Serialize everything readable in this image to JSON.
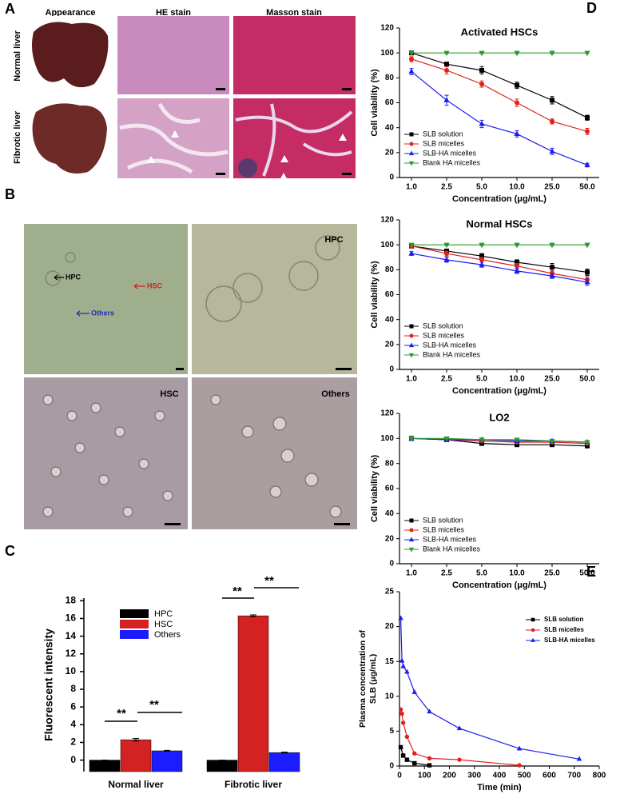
{
  "panel_a": {
    "label": "A",
    "columns": [
      "Appearance",
      "HE stain",
      "Masson stain"
    ],
    "rows": [
      "Normal liver",
      "Fibrotic liver"
    ]
  },
  "panel_b": {
    "label": "B",
    "arrows": [
      "HPC",
      "HSC",
      "Others"
    ],
    "captions": [
      "HPC",
      "HSC",
      "Others"
    ]
  },
  "chart_data": [
    {
      "type": "bar",
      "panel_label": "C",
      "ylabel": "Fluorescent intensity",
      "categories": [
        "Normal liver",
        "Fibrotic liver"
      ],
      "series": [
        {
          "name": "HPC",
          "color": "#000000",
          "values": [
            0,
            0
          ],
          "errors": [
            0,
            0
          ]
        },
        {
          "name": "HSC",
          "color": "#d42222",
          "values": [
            2.3,
            16.3
          ],
          "errors": [
            0.15,
            0.1
          ]
        },
        {
          "name": "Others",
          "color": "#1c1cff",
          "values": [
            1.05,
            0.85
          ],
          "errors": [
            0.05,
            0.05
          ]
        }
      ],
      "ylim": [
        -1.3,
        18.3
      ],
      "yticks": [
        0,
        2,
        4,
        6,
        8,
        10,
        12,
        14,
        16,
        18
      ],
      "annotations": [
        "**",
        "**",
        "**",
        "**"
      ]
    },
    {
      "type": "line",
      "panel_label": "D",
      "title": "Activated HSCs",
      "xlabel": "Concentration (μg/mL)",
      "ylabel": "Cell viability (%)",
      "categories": [
        "1.0",
        "2.5",
        "5.0",
        "10.0",
        "25.0",
        "50.0"
      ],
      "ylim": [
        0,
        120
      ],
      "yticks": [
        0,
        20,
        40,
        60,
        80,
        100,
        120
      ],
      "series": [
        {
          "name": "SLB solution",
          "color": "#000000",
          "marker": "square",
          "values": [
            100,
            91,
            86,
            74,
            62,
            48
          ],
          "errors": [
            1,
            1.5,
            3,
            2.5,
            3,
            2
          ]
        },
        {
          "name": "SLB micelles",
          "color": "#e0201c",
          "marker": "circle",
          "values": [
            95,
            86,
            75,
            60,
            45,
            37
          ],
          "errors": [
            2,
            3,
            2.5,
            3,
            2,
            2.5
          ]
        },
        {
          "name": "SLB-HA micelles",
          "color": "#1c1cf0",
          "marker": "triangle",
          "values": [
            85,
            62,
            43,
            35,
            21,
            10
          ],
          "errors": [
            2.5,
            4,
            3,
            2.5,
            2.5,
            1.5
          ]
        },
        {
          "name": "Blank HA micelles",
          "color": "#2a9a2a",
          "marker": "triangle-down",
          "values": [
            100,
            100,
            100,
            100,
            100,
            100
          ],
          "errors": [
            0.5,
            0.5,
            0.5,
            0.5,
            0.5,
            0.5
          ]
        }
      ]
    },
    {
      "type": "line",
      "title": "Normal HSCs",
      "xlabel": "Concentration (μg/mL)",
      "ylabel": "Cell viability (%)",
      "categories": [
        "1.0",
        "2.5",
        "5.0",
        "10.0",
        "25.0",
        "50.0"
      ],
      "ylim": [
        0,
        120
      ],
      "yticks": [
        0,
        20,
        40,
        60,
        80,
        100,
        120
      ],
      "series": [
        {
          "name": "SLB solution",
          "color": "#000000",
          "marker": "square",
          "values": [
            99,
            95,
            91,
            86,
            82,
            78
          ],
          "errors": [
            1,
            1.5,
            2,
            2,
            3,
            2.5
          ]
        },
        {
          "name": "SLB micelles",
          "color": "#e0201c",
          "marker": "circle",
          "values": [
            99,
            93,
            88,
            83,
            77,
            72
          ],
          "errors": [
            1,
            2,
            2,
            2,
            2,
            2.5
          ]
        },
        {
          "name": "SLB-HA micelles",
          "color": "#1c1cf0",
          "marker": "triangle",
          "values": [
            93,
            88,
            84,
            79,
            75,
            70
          ],
          "errors": [
            1.5,
            2,
            2,
            2,
            2,
            2.5
          ]
        },
        {
          "name": "Blank HA micelles",
          "color": "#2a9a2a",
          "marker": "triangle-down",
          "values": [
            100,
            100,
            100,
            100,
            100,
            100
          ],
          "errors": [
            0.5,
            0.5,
            0.5,
            0.5,
            0.5,
            0.5
          ]
        }
      ]
    },
    {
      "type": "line",
      "title": "LO2",
      "xlabel": "Concentration (μg/mL)",
      "ylabel": "Cell viability (%)",
      "categories": [
        "1.0",
        "2.5",
        "5.0",
        "10.0",
        "25.0",
        "50.0"
      ],
      "ylim": [
        0,
        120
      ],
      "yticks": [
        0,
        20,
        40,
        60,
        80,
        100,
        120
      ],
      "series": [
        {
          "name": "SLB solution",
          "color": "#000000",
          "marker": "square",
          "values": [
            100,
            99,
            96,
            95,
            95,
            94
          ],
          "errors": [
            0.5,
            0.5,
            1,
            1,
            1,
            1
          ]
        },
        {
          "name": "SLB micelles",
          "color": "#e0201c",
          "marker": "circle",
          "values": [
            100,
            99,
            98,
            97,
            97,
            96
          ],
          "errors": [
            0.5,
            0.5,
            0.5,
            1,
            1,
            1
          ]
        },
        {
          "name": "SLB-HA micelles",
          "color": "#1c1cf0",
          "marker": "triangle",
          "values": [
            100,
            99,
            99,
            98,
            98,
            97
          ],
          "errors": [
            0.5,
            0.5,
            0.5,
            0.5,
            1,
            1
          ]
        },
        {
          "name": "Blank HA micelles",
          "color": "#2a9a2a",
          "marker": "triangle-down",
          "values": [
            100,
            100,
            99,
            99,
            98,
            97
          ],
          "errors": [
            0.5,
            0.5,
            0.5,
            0.5,
            0.5,
            0.5
          ]
        }
      ]
    },
    {
      "type": "line",
      "panel_label": "E",
      "xlabel": "Time (min)",
      "ylabel": [
        "Plasma concentration of",
        "SLB (μg/mL)"
      ],
      "xlim": [
        0,
        800
      ],
      "xticks": [
        0,
        100,
        200,
        300,
        400,
        500,
        600,
        700,
        800
      ],
      "ylim": [
        0,
        25
      ],
      "yticks": [
        0,
        5,
        10,
        15,
        20,
        25
      ],
      "series": [
        {
          "name": "SLB solution",
          "color": "#000000",
          "marker": "square",
          "x": [
            5,
            15,
            30,
            60,
            120
          ],
          "values": [
            2.7,
            1.5,
            0.9,
            0.4,
            0.1
          ]
        },
        {
          "name": "SLB micelles",
          "color": "#e0201c",
          "marker": "circle",
          "x": [
            5,
            10,
            15,
            30,
            60,
            120,
            240,
            480
          ],
          "values": [
            8.1,
            7.5,
            6.2,
            4.2,
            1.8,
            1.1,
            0.9,
            0.1
          ]
        },
        {
          "name": "SLB-HA micelles",
          "color": "#1c1cf0",
          "marker": "triangle",
          "x": [
            5,
            10,
            15,
            30,
            60,
            120,
            240,
            480,
            720
          ],
          "values": [
            21.2,
            15.1,
            14.3,
            13.5,
            10.6,
            7.8,
            5.4,
            2.5,
            1.0
          ]
        }
      ]
    }
  ]
}
